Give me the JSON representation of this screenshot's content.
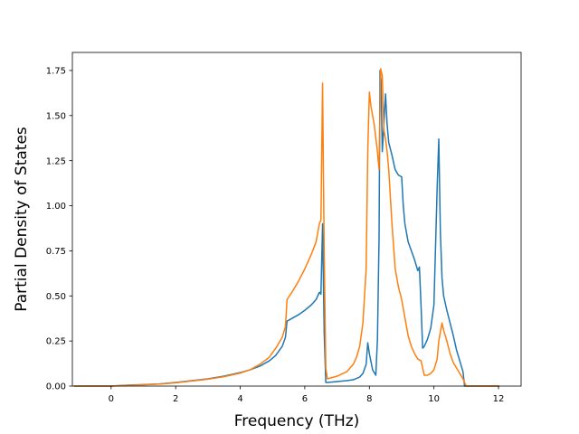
{
  "chart_data": {
    "type": "line",
    "title": "",
    "xlabel": "Frequency (THz)",
    "ylabel": "Partial Density of States",
    "xlim": [
      -1.2,
      12.7
    ],
    "ylim": [
      0.0,
      1.85
    ],
    "xticks": [
      0,
      2,
      4,
      6,
      8,
      10,
      12
    ],
    "xtick_labels": [
      "0",
      "2",
      "4",
      "6",
      "8",
      "10",
      "12"
    ],
    "yticks": [
      0.0,
      0.25,
      0.5,
      0.75,
      1.0,
      1.25,
      1.5,
      1.75
    ],
    "ytick_labels": [
      "0.00",
      "0.25",
      "0.50",
      "0.75",
      "1.00",
      "1.25",
      "1.50",
      "1.75"
    ],
    "grid": false,
    "legend": "none",
    "series": [
      {
        "color": "#1f77b4",
        "x": [
          -1.13,
          0.0,
          0.5,
          1.0,
          1.5,
          2.0,
          2.5,
          3.0,
          3.5,
          4.0,
          4.3,
          4.6,
          4.9,
          5.1,
          5.3,
          5.4,
          5.45,
          5.6,
          5.8,
          6.0,
          6.2,
          6.35,
          6.45,
          6.5,
          6.55,
          6.6,
          6.65,
          6.7,
          7.0,
          7.3,
          7.5,
          7.7,
          7.8,
          7.9,
          7.95,
          8.0,
          8.1,
          8.2,
          8.25,
          8.3,
          8.33,
          8.36,
          8.4,
          8.45,
          8.5,
          8.55,
          8.6,
          8.7,
          8.8,
          8.9,
          9.0,
          9.05,
          9.1,
          9.2,
          9.3,
          9.4,
          9.5,
          9.55,
          9.6,
          9.65,
          9.7,
          9.8,
          9.9,
          10.0,
          10.1,
          10.15,
          10.2,
          10.25,
          10.3,
          10.4,
          10.5,
          10.6,
          10.7,
          10.8,
          10.9,
          10.95,
          11.0,
          11.5,
          12.0
        ],
        "y": [
          0.0,
          0.0,
          0.005,
          0.008,
          0.012,
          0.02,
          0.03,
          0.04,
          0.055,
          0.075,
          0.09,
          0.11,
          0.14,
          0.17,
          0.22,
          0.27,
          0.36,
          0.375,
          0.395,
          0.42,
          0.45,
          0.48,
          0.52,
          0.51,
          0.9,
          0.3,
          0.02,
          0.02,
          0.025,
          0.03,
          0.035,
          0.05,
          0.07,
          0.12,
          0.24,
          0.18,
          0.09,
          0.06,
          0.26,
          0.82,
          1.75,
          1.7,
          1.3,
          1.45,
          1.62,
          1.45,
          1.35,
          1.28,
          1.2,
          1.17,
          1.16,
          1.0,
          0.9,
          0.8,
          0.75,
          0.7,
          0.64,
          0.66,
          0.45,
          0.21,
          0.22,
          0.26,
          0.32,
          0.45,
          1.1,
          1.37,
          0.85,
          0.6,
          0.5,
          0.42,
          0.35,
          0.28,
          0.2,
          0.14,
          0.08,
          0.0,
          0.0,
          0.0,
          0.0
        ]
      },
      {
        "color": "#ff7f0e",
        "x": [
          -1.13,
          0.0,
          0.5,
          1.0,
          1.5,
          2.0,
          2.5,
          3.0,
          3.5,
          4.0,
          4.3,
          4.6,
          4.9,
          5.1,
          5.3,
          5.4,
          5.45,
          5.6,
          5.8,
          6.0,
          6.2,
          6.35,
          6.45,
          6.5,
          6.55,
          6.6,
          6.65,
          6.7,
          7.0,
          7.3,
          7.5,
          7.6,
          7.7,
          7.8,
          7.9,
          7.95,
          8.0,
          8.05,
          8.15,
          8.25,
          8.3,
          8.35,
          8.4,
          8.45,
          8.5,
          8.55,
          8.6,
          8.7,
          8.8,
          8.9,
          9.0,
          9.1,
          9.2,
          9.3,
          9.4,
          9.5,
          9.6,
          9.7,
          9.8,
          9.9,
          10.0,
          10.1,
          10.15,
          10.2,
          10.25,
          10.3,
          10.4,
          10.5,
          10.6,
          10.7,
          10.8,
          10.9,
          10.95,
          11.0,
          11.5,
          12.0
        ],
        "y": [
          0.0,
          0.0,
          0.004,
          0.007,
          0.011,
          0.018,
          0.028,
          0.038,
          0.052,
          0.072,
          0.09,
          0.12,
          0.16,
          0.21,
          0.27,
          0.33,
          0.48,
          0.52,
          0.58,
          0.65,
          0.73,
          0.8,
          0.9,
          0.92,
          1.68,
          0.75,
          0.1,
          0.04,
          0.055,
          0.08,
          0.12,
          0.16,
          0.22,
          0.35,
          0.65,
          1.3,
          1.63,
          1.55,
          1.45,
          1.3,
          1.2,
          1.76,
          1.72,
          1.42,
          1.37,
          1.3,
          1.2,
          0.9,
          0.65,
          0.55,
          0.48,
          0.38,
          0.28,
          0.22,
          0.18,
          0.15,
          0.14,
          0.06,
          0.06,
          0.07,
          0.09,
          0.15,
          0.25,
          0.3,
          0.35,
          0.31,
          0.25,
          0.18,
          0.13,
          0.1,
          0.07,
          0.04,
          0.02,
          0.0,
          0.0,
          0.0
        ]
      }
    ]
  }
}
